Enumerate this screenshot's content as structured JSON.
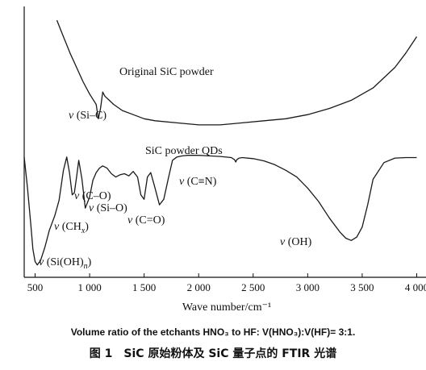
{
  "chart_data": {
    "type": "line",
    "xlabel": "Wave number/cm⁻¹",
    "ylabel": "",
    "xlim": [
      400,
      4100
    ],
    "x_ticks": [
      500,
      1000,
      1500,
      2000,
      2500,
      3000,
      3500,
      4000
    ],
    "x_tick_labels": [
      "500",
      "1 000",
      "1 500",
      "2 000",
      "2 500",
      "3 000",
      "3 500",
      "4 000"
    ],
    "grid": false,
    "series": [
      {
        "name": "Original SiC powder",
        "x": [
          700,
          760,
          820,
          880,
          940,
          1000,
          1060,
          1080,
          1100,
          1120,
          1140,
          1180,
          1220,
          1300,
          1400,
          1500,
          1600,
          1800,
          2000,
          2200,
          2400,
          2600,
          2800,
          3000,
          3200,
          3400,
          3600,
          3800,
          3900,
          4000
        ],
        "y": [
          0.33,
          0.25,
          0.17,
          0.1,
          0.03,
          -0.03,
          -0.08,
          -0.15,
          -0.1,
          -0.02,
          -0.04,
          -0.06,
          -0.08,
          -0.11,
          -0.13,
          -0.15,
          -0.16,
          -0.17,
          -0.18,
          -0.18,
          -0.17,
          -0.16,
          -0.15,
          -0.13,
          -0.1,
          -0.06,
          0.0,
          0.1,
          0.17,
          0.25
        ]
      },
      {
        "name": "SiC powder QDs",
        "x": [
          400,
          430,
          460,
          480,
          500,
          520,
          550,
          590,
          630,
          680,
          720,
          760,
          790,
          815,
          840,
          860,
          880,
          900,
          930,
          960,
          1000,
          1030,
          1060,
          1090,
          1120,
          1160,
          1200,
          1240,
          1280,
          1320,
          1360,
          1400,
          1440,
          1470,
          1500,
          1530,
          1560,
          1600,
          1640,
          1680,
          1720,
          1760,
          1800,
          1850,
          1900,
          2000,
          2100,
          2200,
          2300,
          2330,
          2340,
          2350,
          2370,
          2400,
          2500,
          2600,
          2700,
          2800,
          2900,
          3000,
          3100,
          3200,
          3300,
          3350,
          3400,
          3450,
          3500,
          3550,
          3600,
          3700,
          3800,
          3900,
          4000
        ],
        "y": [
          0.98,
          0.7,
          0.38,
          0.15,
          0.04,
          0.01,
          0.05,
          0.17,
          0.32,
          0.45,
          0.59,
          0.86,
          0.98,
          0.84,
          0.64,
          0.66,
          0.8,
          0.95,
          0.78,
          0.52,
          0.62,
          0.77,
          0.84,
          0.88,
          0.9,
          0.88,
          0.83,
          0.8,
          0.82,
          0.83,
          0.81,
          0.85,
          0.8,
          0.64,
          0.6,
          0.8,
          0.84,
          0.7,
          0.55,
          0.6,
          0.78,
          0.95,
          0.98,
          0.99,
          0.995,
          0.995,
          0.99,
          0.985,
          0.975,
          0.955,
          0.935,
          0.955,
          0.97,
          0.975,
          0.965,
          0.945,
          0.91,
          0.86,
          0.8,
          0.7,
          0.58,
          0.43,
          0.3,
          0.25,
          0.23,
          0.26,
          0.35,
          0.55,
          0.78,
          0.93,
          0.97,
          0.975,
          0.975
        ]
      }
    ],
    "annotations": [
      {
        "text": "Original SiC powder"
      },
      {
        "text": "v (Si–C)"
      },
      {
        "text": "SiC powder QDs"
      },
      {
        "text": "v (C≡N)"
      },
      {
        "text": "v (C–O)"
      },
      {
        "text": "v (Si–O)"
      },
      {
        "text": "v (C=O)"
      },
      {
        "text": "v (CH",
        "sub": "x",
        "tail": ")"
      },
      {
        "text": "v (Si(OH)",
        "sub": "n",
        "tail": ")"
      },
      {
        "text": "v (OH)"
      }
    ]
  },
  "caption": {
    "english": "Volume ratio of the etchants HNO₃ to HF: V(HNO₃):V(HF)= 3:1.",
    "chinese": "图 1　SiC 原始粉体及 SiC 量子点的 FTIR 光谱"
  },
  "colors": {
    "line": "#1a1a1a",
    "axis": "#111111",
    "background": "#ffffff"
  }
}
